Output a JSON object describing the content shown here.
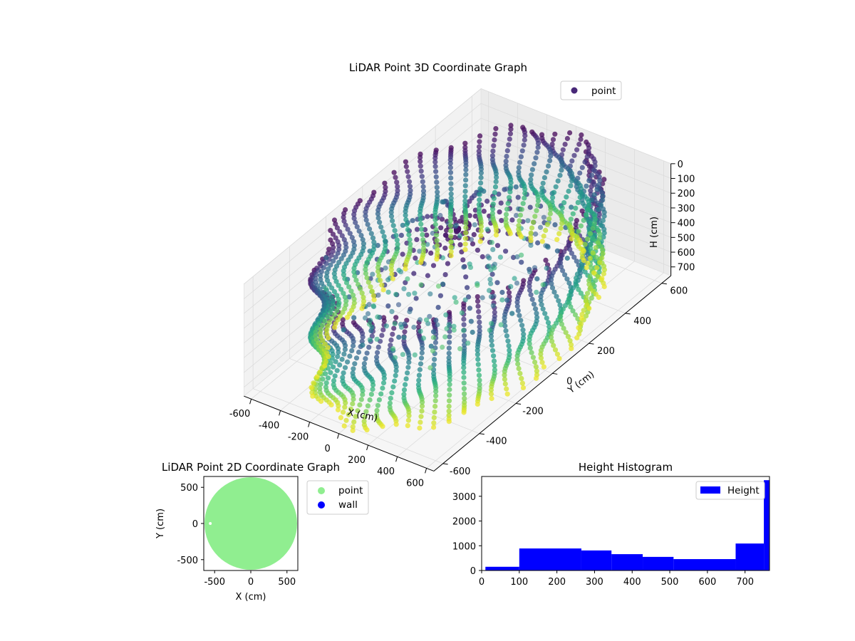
{
  "chart_data": [
    {
      "type": "scatter3d",
      "title": "LiDAR Point 3D Coordinate Graph",
      "xlabel": "X (cm)",
      "ylabel": "Y (cm)",
      "zlabel": "H (cm)",
      "xlim": [
        -650,
        650
      ],
      "ylim": [
        -650,
        650
      ],
      "zlim": [
        0,
        760
      ],
      "z_inverted": true,
      "xticks": [
        -600,
        -400,
        -200,
        0,
        200,
        400,
        600
      ],
      "yticks": [
        -600,
        -400,
        -200,
        0,
        200,
        400,
        600
      ],
      "zticks": [
        0,
        100,
        200,
        300,
        400,
        500,
        600,
        700
      ],
      "colormap": "viridis",
      "legend": {
        "placement": "upper-right",
        "entries": [
          "point"
        ]
      },
      "series": [
        {
          "name": "point",
          "structure": "cylindrical wall of radius about 600 cm, height 0-760 cm, roughly 60 vertical columns; radial spokes near the top converging at the center",
          "wall_radius": 600,
          "wall_columns": 60,
          "height_range": [
            0,
            760
          ]
        }
      ]
    },
    {
      "type": "scatter",
      "title": "LiDAR Point 2D Coordinate Graph",
      "xlabel": "X (cm)",
      "ylabel": "Y (cm)",
      "xlim": [
        -650,
        650
      ],
      "ylim": [
        -650,
        650
      ],
      "xticks": [
        -500,
        0,
        500
      ],
      "yticks": [
        -500,
        0,
        500
      ],
      "legend": {
        "placement": "outside-right",
        "entries": [
          "point",
          "wall"
        ]
      },
      "series": [
        {
          "name": "point",
          "color": "#90ee90",
          "shape": "filled disk",
          "radius": 640
        },
        {
          "name": "wall",
          "color": "#0000ff",
          "points": []
        }
      ]
    },
    {
      "type": "histogram",
      "title": "Height Histogram",
      "xlabel": "",
      "ylabel": "",
      "xlim": [
        0,
        765
      ],
      "ylim": [
        0,
        3800
      ],
      "xticks": [
        0,
        100,
        200,
        300,
        400,
        500,
        600,
        700
      ],
      "yticks": [
        0,
        1000,
        2000,
        3000
      ],
      "legend": {
        "placement": "upper-right",
        "entries": [
          "Height"
        ]
      },
      "color": "#0000ff",
      "bins": [
        {
          "x0": 10,
          "x1": 100,
          "count": 150
        },
        {
          "x0": 100,
          "x1": 265,
          "count": 890
        },
        {
          "x0": 265,
          "x1": 345,
          "count": 810
        },
        {
          "x0": 345,
          "x1": 428,
          "count": 660
        },
        {
          "x0": 428,
          "x1": 510,
          "count": 550
        },
        {
          "x0": 510,
          "x1": 675,
          "count": 460
        },
        {
          "x0": 675,
          "x1": 750,
          "count": 1090
        },
        {
          "x0": 750,
          "x1": 765,
          "count": 3650
        }
      ]
    }
  ]
}
